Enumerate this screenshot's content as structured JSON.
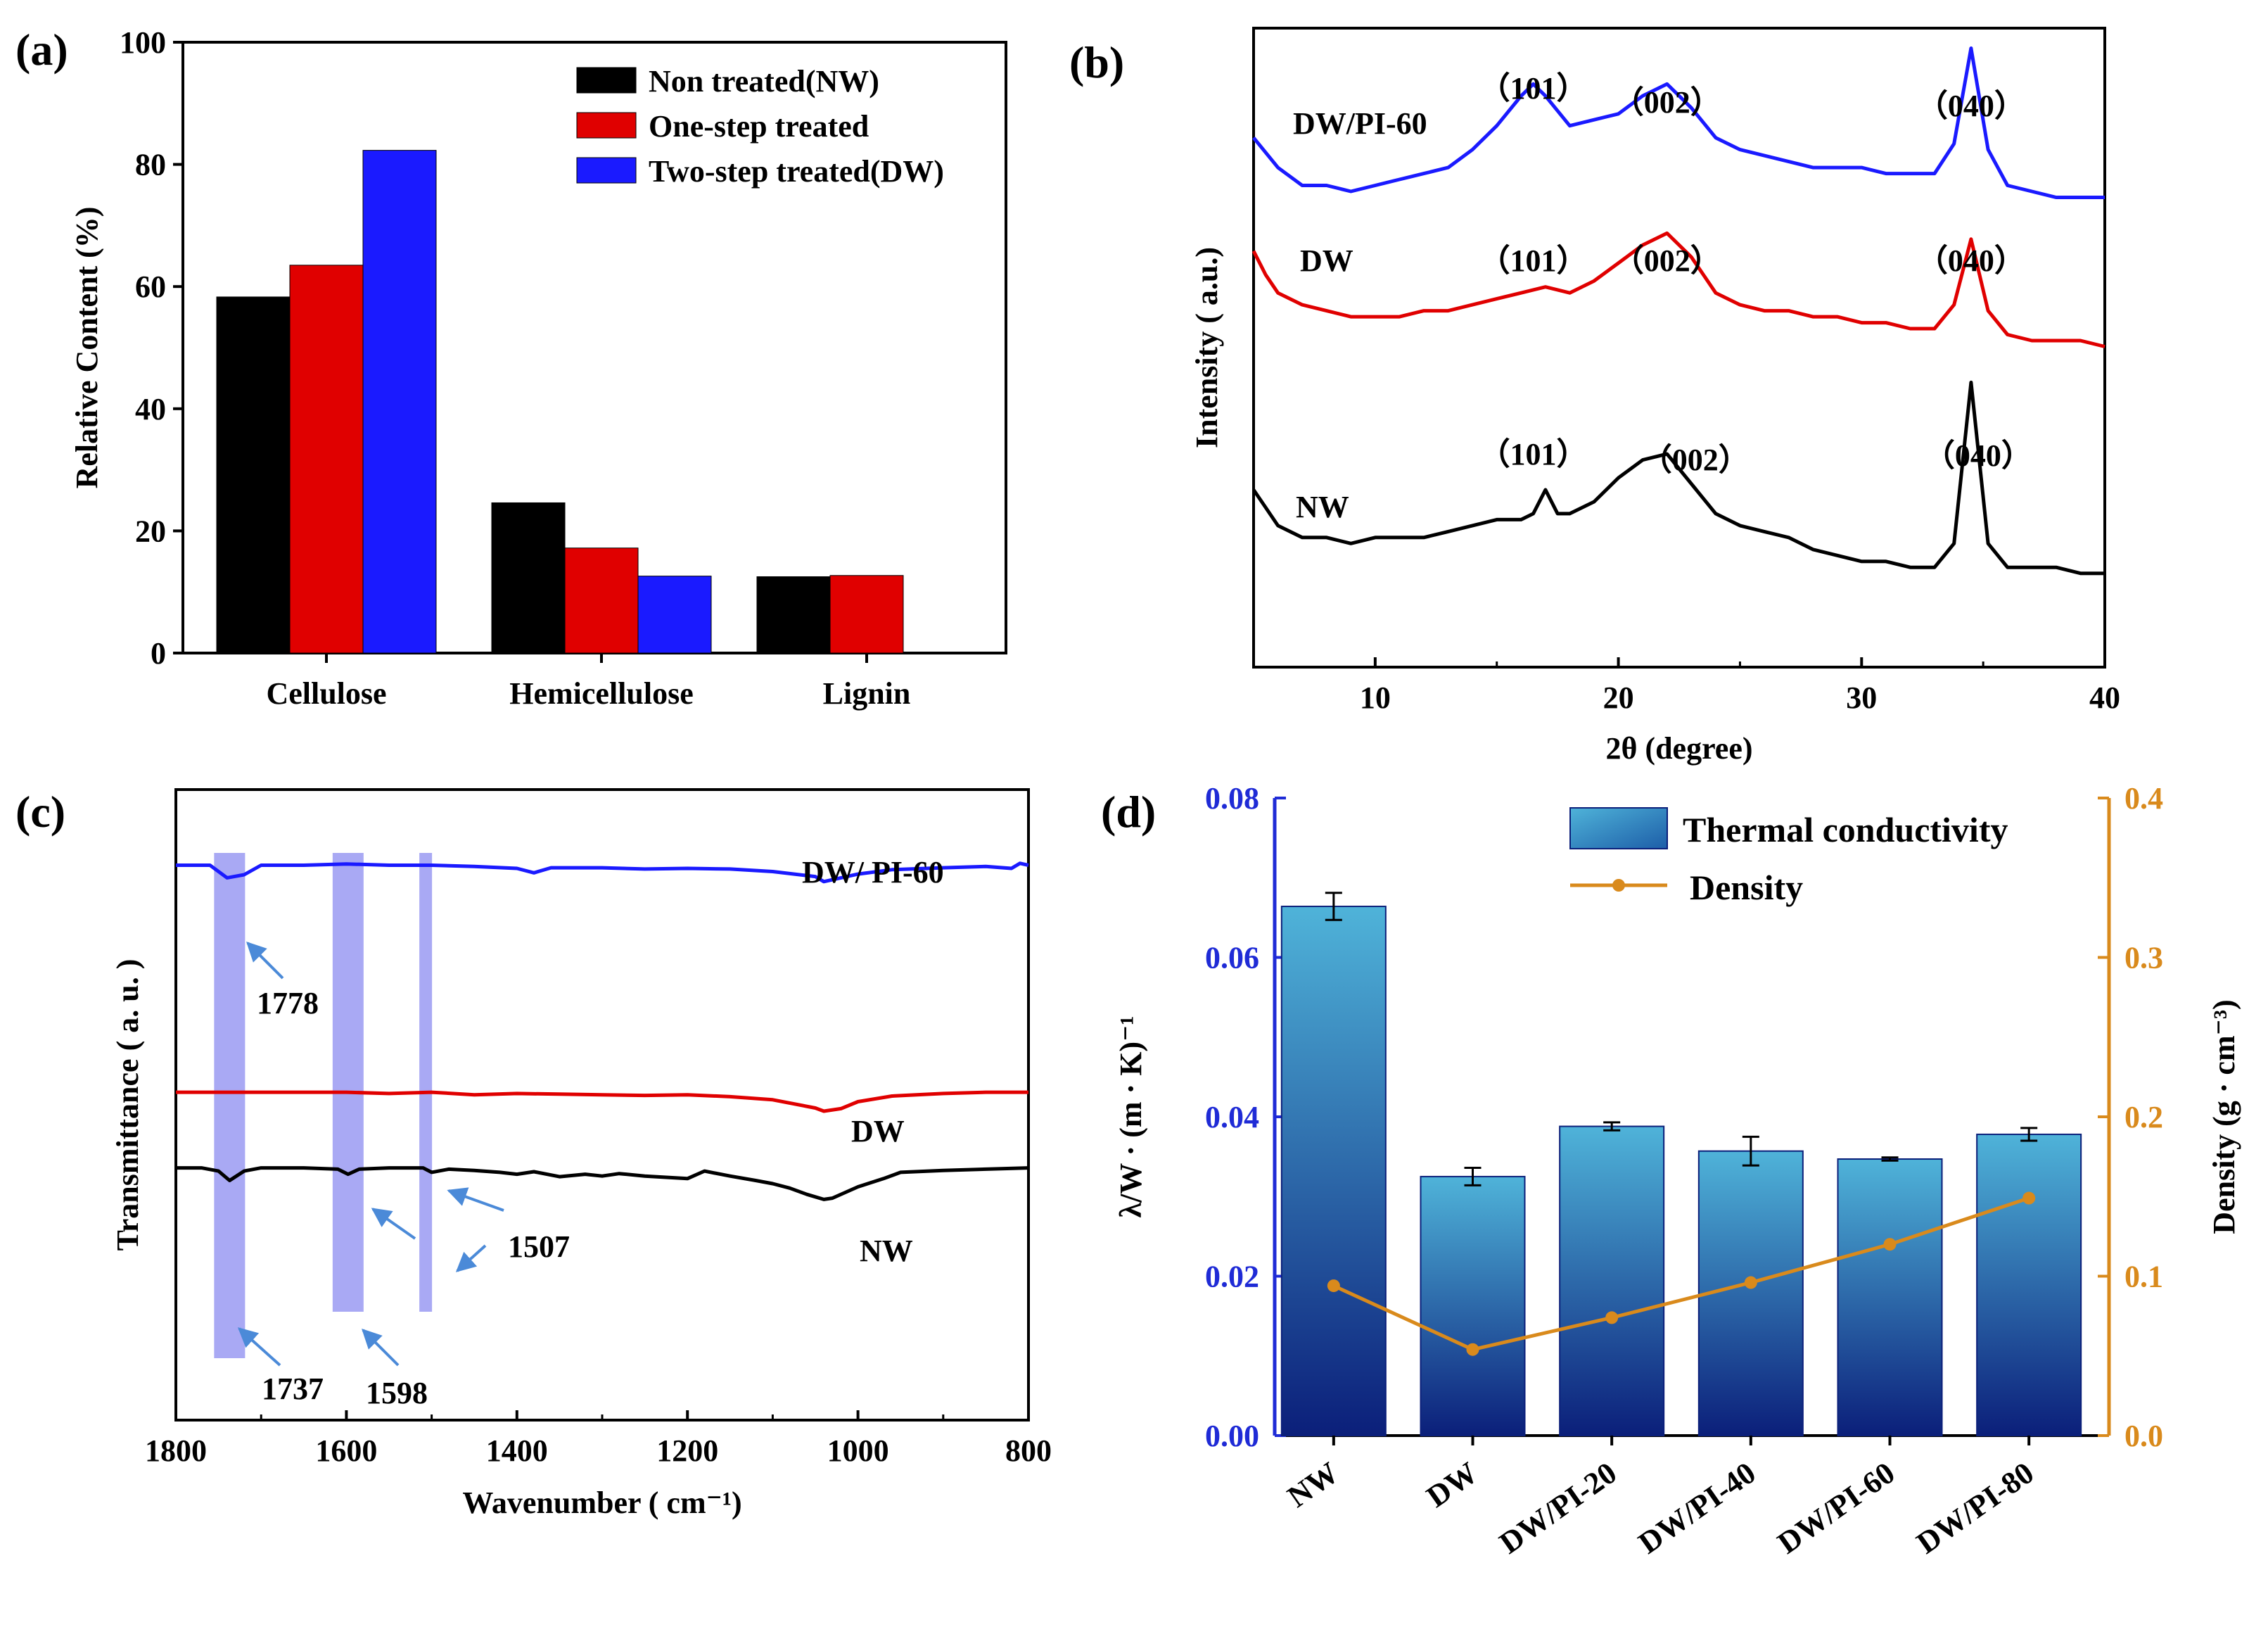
{
  "figure": {
    "panels": [
      {
        "letter": "(a)"
      },
      {
        "letter": "(b)"
      },
      {
        "letter": "(c)"
      },
      {
        "letter": "(d)"
      }
    ]
  },
  "colors": {
    "black": "#000000",
    "red": "#e00000",
    "blue": "#1a1aff",
    "axisBlue": "#1f2bd6",
    "orange": "#d98a1c",
    "bandPurple": "#8c8cf0",
    "arrow": "#4b8ad8",
    "barTop": "#4fb3d9",
    "barBottom": "#0b1f7a"
  },
  "chart_data": [
    {
      "panel": "(a)",
      "type": "bar",
      "title": "",
      "xlabel": "",
      "ylabel": "Relative Content (%)",
      "ylim": [
        0,
        100
      ],
      "yticks": [
        "0",
        "20",
        "40",
        "60",
        "80",
        "100"
      ],
      "categories": [
        "Cellulose",
        "Hemicellulose",
        "Lignin"
      ],
      "series": [
        {
          "name": "Non treated(NW)",
          "color": "#000000",
          "values": [
            58.3,
            24.6,
            12.5
          ]
        },
        {
          "name": "One-step treated",
          "color": "#e00000",
          "values": [
            63.5,
            17.2,
            12.7
          ]
        },
        {
          "name": "Two-step treated(DW)",
          "color": "#1a1aff",
          "values": [
            82.3,
            12.6,
            null
          ]
        }
      ],
      "legend": "top-right"
    },
    {
      "panel": "(b)",
      "type": "line",
      "title": "",
      "xlabel": "2θ (degree)",
      "ylabel": "Intensity ( a.u.)",
      "xlim": [
        5,
        40
      ],
      "xticks": [
        "10",
        "20",
        "30",
        "40"
      ],
      "series": [
        {
          "name": "DW/PI-60",
          "color": "#1a1aff",
          "peaks": [
            {
              "label": "（101）",
              "x": 16.5
            },
            {
              "label": "（002）",
              "x": 22
            },
            {
              "label": "（040）",
              "x": 34.5
            }
          ],
          "points": [
            [
              5,
              84
            ],
            [
              6,
              79
            ],
            [
              7,
              76
            ],
            [
              8,
              76
            ],
            [
              9,
              75
            ],
            [
              10,
              76
            ],
            [
              11,
              77
            ],
            [
              12,
              78
            ],
            [
              13,
              79
            ],
            [
              14,
              82
            ],
            [
              15,
              86
            ],
            [
              16,
              91
            ],
            [
              16.5,
              93
            ],
            [
              17,
              91
            ],
            [
              18,
              86
            ],
            [
              19,
              87
            ],
            [
              20,
              88
            ],
            [
              21,
              91
            ],
            [
              22,
              93
            ],
            [
              23,
              89
            ],
            [
              24,
              84
            ],
            [
              25,
              82
            ],
            [
              26,
              81
            ],
            [
              27,
              80
            ],
            [
              28,
              79
            ],
            [
              29,
              79
            ],
            [
              30,
              79
            ],
            [
              31,
              78
            ],
            [
              32,
              78
            ],
            [
              33,
              78
            ],
            [
              33.8,
              83
            ],
            [
              34.5,
              99
            ],
            [
              35.2,
              82
            ],
            [
              36,
              76
            ],
            [
              37,
              75
            ],
            [
              38,
              74
            ],
            [
              39,
              74
            ],
            [
              40,
              74
            ]
          ]
        },
        {
          "name": "DW",
          "color": "#e00000",
          "peaks": [
            {
              "label": "（101）",
              "x": 16.5
            },
            {
              "label": "（002）",
              "x": 22
            },
            {
              "label": "（040）",
              "x": 34.5
            }
          ],
          "points": [
            [
              5,
              65
            ],
            [
              5.5,
              61
            ],
            [
              6,
              58
            ],
            [
              7,
              56
            ],
            [
              8,
              55
            ],
            [
              9,
              54
            ],
            [
              10,
              54
            ],
            [
              11,
              54
            ],
            [
              12,
              55
            ],
            [
              13,
              55
            ],
            [
              14,
              56
            ],
            [
              15,
              57
            ],
            [
              16,
              58
            ],
            [
              17,
              59
            ],
            [
              18,
              58
            ],
            [
              19,
              60
            ],
            [
              20,
              63
            ],
            [
              21,
              66
            ],
            [
              22,
              68
            ],
            [
              23,
              64
            ],
            [
              24,
              58
            ],
            [
              25,
              56
            ],
            [
              26,
              55
            ],
            [
              27,
              55
            ],
            [
              28,
              54
            ],
            [
              29,
              54
            ],
            [
              30,
              53
            ],
            [
              31,
              53
            ],
            [
              32,
              52
            ],
            [
              33,
              52
            ],
            [
              33.8,
              56
            ],
            [
              34.5,
              67
            ],
            [
              35.2,
              55
            ],
            [
              36,
              51
            ],
            [
              37,
              50
            ],
            [
              38,
              50
            ],
            [
              39,
              50
            ],
            [
              40,
              49
            ]
          ]
        },
        {
          "name": "NW",
          "color": "#000000",
          "peaks": [
            {
              "label": "（101）",
              "x": 16.5
            },
            {
              "label": "（002）",
              "x": 22
            },
            {
              "label": "（040）",
              "x": 34.5
            }
          ],
          "points": [
            [
              5,
              25
            ],
            [
              5.5,
              22
            ],
            [
              6,
              19
            ],
            [
              7,
              17
            ],
            [
              8,
              17
            ],
            [
              9,
              16
            ],
            [
              10,
              17
            ],
            [
              11,
              17
            ],
            [
              12,
              17
            ],
            [
              13,
              18
            ],
            [
              14,
              19
            ],
            [
              15,
              20
            ],
            [
              16,
              20
            ],
            [
              16.5,
              21
            ],
            [
              17,
              25
            ],
            [
              17.5,
              21
            ],
            [
              18,
              21
            ],
            [
              19,
              23
            ],
            [
              20,
              27
            ],
            [
              21,
              30
            ],
            [
              22,
              31
            ],
            [
              23,
              26
            ],
            [
              24,
              21
            ],
            [
              25,
              19
            ],
            [
              26,
              18
            ],
            [
              27,
              17
            ],
            [
              28,
              15
            ],
            [
              29,
              14
            ],
            [
              30,
              13
            ],
            [
              31,
              13
            ],
            [
              32,
              12
            ],
            [
              33,
              12
            ],
            [
              33.8,
              16
            ],
            [
              34.5,
              43
            ],
            [
              35.2,
              16
            ],
            [
              36,
              12
            ],
            [
              37,
              12
            ],
            [
              38,
              12
            ],
            [
              39,
              11
            ],
            [
              40,
              11
            ]
          ]
        }
      ]
    },
    {
      "panel": "(c)",
      "type": "line",
      "title": "",
      "xlabel": "Wavenumber ( cm⁻¹)",
      "ylabel": "Transmittance ( a. u. )",
      "xlim": [
        1800,
        800
      ],
      "xticks": [
        "1800",
        "1600",
        "1400",
        "1200",
        "1000",
        "800"
      ],
      "bands": [
        1737,
        1598,
        1507
      ],
      "annotations": [
        {
          "text": "1778",
          "x": 1778,
          "series": "DW/ PI-60"
        },
        {
          "text": "1737",
          "x": 1737,
          "series": "NW"
        },
        {
          "text": "1598",
          "x": 1598,
          "series": "NW"
        },
        {
          "text": "1507",
          "x": 1507,
          "series": "NW"
        }
      ],
      "series": [
        {
          "name": "DW/ PI-60",
          "color": "#1a1aff",
          "points": [
            [
              1800,
              88
            ],
            [
              1760,
              88
            ],
            [
              1740,
              86
            ],
            [
              1720,
              86.5
            ],
            [
              1700,
              88
            ],
            [
              1650,
              88
            ],
            [
              1600,
              88.2
            ],
            [
              1550,
              88
            ],
            [
              1500,
              88
            ],
            [
              1450,
              87.8
            ],
            [
              1400,
              87.5
            ],
            [
              1380,
              86.8
            ],
            [
              1360,
              87.6
            ],
            [
              1300,
              87.6
            ],
            [
              1250,
              87.4
            ],
            [
              1200,
              87.5
            ],
            [
              1150,
              87.4
            ],
            [
              1100,
              87
            ],
            [
              1050,
              86.2
            ],
            [
              1040,
              85.4
            ],
            [
              1020,
              86
            ],
            [
              1000,
              86.6
            ],
            [
              960,
              87.3
            ],
            [
              900,
              87.6
            ],
            [
              850,
              87.8
            ],
            [
              820,
              87.5
            ],
            [
              810,
              88.3
            ],
            [
              800,
              88
            ]
          ]
        },
        {
          "name": "DW",
          "color": "#e00000",
          "points": [
            [
              1800,
              52
            ],
            [
              1750,
              52
            ],
            [
              1700,
              52
            ],
            [
              1650,
              52
            ],
            [
              1600,
              52
            ],
            [
              1550,
              51.8
            ],
            [
              1500,
              52
            ],
            [
              1450,
              51.6
            ],
            [
              1400,
              51.8
            ],
            [
              1350,
              51.7
            ],
            [
              1300,
              51.6
            ],
            [
              1250,
              51.5
            ],
            [
              1200,
              51.6
            ],
            [
              1150,
              51.3
            ],
            [
              1100,
              50.8
            ],
            [
              1050,
              49.5
            ],
            [
              1040,
              49
            ],
            [
              1020,
              49.4
            ],
            [
              1000,
              50.5
            ],
            [
              960,
              51.4
            ],
            [
              900,
              51.8
            ],
            [
              850,
              52
            ],
            [
              800,
              52
            ]
          ]
        },
        {
          "name": "NW",
          "color": "#000000",
          "points": [
            [
              1800,
              40
            ],
            [
              1770,
              40
            ],
            [
              1750,
              39.5
            ],
            [
              1737,
              38
            ],
            [
              1720,
              39.5
            ],
            [
              1700,
              40
            ],
            [
              1650,
              40
            ],
            [
              1610,
              39.8
            ],
            [
              1598,
              39
            ],
            [
              1585,
              39.8
            ],
            [
              1550,
              40
            ],
            [
              1510,
              40
            ],
            [
              1500,
              39.3
            ],
            [
              1480,
              39.8
            ],
            [
              1450,
              39.6
            ],
            [
              1420,
              39.3
            ],
            [
              1400,
              39
            ],
            [
              1380,
              39.4
            ],
            [
              1350,
              38.6
            ],
            [
              1320,
              39
            ],
            [
              1300,
              38.7
            ],
            [
              1280,
              39.1
            ],
            [
              1250,
              38.7
            ],
            [
              1200,
              38.3
            ],
            [
              1180,
              39.5
            ],
            [
              1150,
              38.7
            ],
            [
              1120,
              38
            ],
            [
              1100,
              37.5
            ],
            [
              1080,
              36.8
            ],
            [
              1060,
              35.8
            ],
            [
              1040,
              35
            ],
            [
              1030,
              35.2
            ],
            [
              1000,
              37
            ],
            [
              970,
              38.3
            ],
            [
              950,
              39.3
            ],
            [
              900,
              39.6
            ],
            [
              850,
              39.8
            ],
            [
              800,
              40
            ]
          ]
        }
      ]
    },
    {
      "panel": "(d)",
      "type": "bar",
      "title": "",
      "categories": [
        "NW",
        "DW",
        "DW/PI-20",
        "DW/PI-40",
        "DW/PI-60",
        "DW/PI-80"
      ],
      "ylabel_left": "λ/W · (m · K)⁻¹",
      "ylabel_right": "Density (g · cm⁻³)",
      "ylim_left": [
        0,
        0.08
      ],
      "ylim_right": [
        0,
        0.4
      ],
      "yticks_left": [
        "0.00",
        "0.02",
        "0.04",
        "0.06",
        "0.08"
      ],
      "yticks_right": [
        "0.0",
        "0.1",
        "0.2",
        "0.3",
        "0.4"
      ],
      "series": [
        {
          "name": "Thermal conductivity",
          "kind": "bar",
          "axis": "left",
          "values": [
            0.0664,
            0.0325,
            0.0388,
            0.0357,
            0.0347,
            0.0378
          ],
          "errors": [
            0.0017,
            0.0011,
            0.0005,
            0.0018,
            0.0002,
            0.0008
          ]
        },
        {
          "name": "Density",
          "kind": "line",
          "axis": "right",
          "values": [
            0.094,
            0.054,
            0.074,
            0.096,
            0.12,
            0.149
          ]
        }
      ],
      "legend": "top-right"
    }
  ]
}
